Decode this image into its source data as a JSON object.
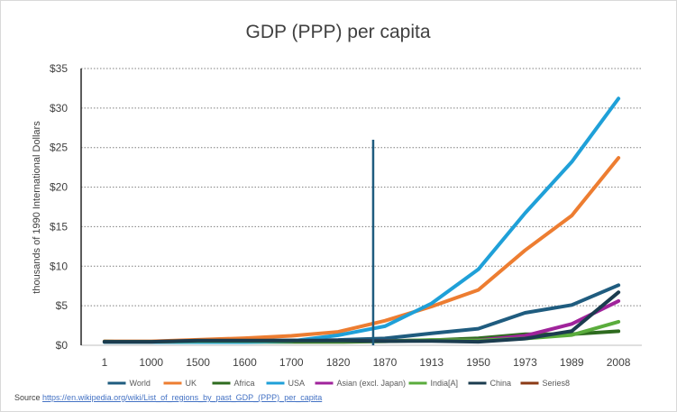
{
  "chart_data": {
    "type": "line",
    "title": "GDP (PPP) per capita",
    "ylabel": "thousands of 1990 International Dollars",
    "xlabel": "",
    "categories": [
      "1",
      "1000",
      "1500",
      "1600",
      "1700",
      "1820",
      "1870",
      "1913",
      "1950",
      "1973",
      "1989",
      "2008"
    ],
    "ylim": [
      0,
      35
    ],
    "yticks": [
      0,
      5,
      10,
      15,
      20,
      25,
      30,
      35
    ],
    "ytick_labels": [
      "$0",
      "$5",
      "$10",
      "$15",
      "$20",
      "$25",
      "$30",
      "$35"
    ],
    "grid": "horizontal dotted",
    "legend_position": "bottom",
    "series": [
      {
        "name": "World",
        "color": "#1f5c7f",
        "values": [
          0.47,
          0.45,
          0.57,
          0.6,
          0.62,
          0.67,
          0.87,
          1.5,
          2.1,
          4.1,
          5.1,
          7.6
        ]
      },
      {
        "name": "UK",
        "color": "#ed7d31",
        "values": [
          0.5,
          0.5,
          0.7,
          0.9,
          1.2,
          1.7,
          3.1,
          4.9,
          7.0,
          12.0,
          16.4,
          23.7
        ]
      },
      {
        "name": "Africa",
        "color": "#2e6b1f",
        "values": [
          0.47,
          0.43,
          0.41,
          0.42,
          0.42,
          0.42,
          0.5,
          0.64,
          0.89,
          1.4,
          1.4,
          1.78
        ]
      },
      {
        "name": "USA",
        "color": "#1fa0d8",
        "values": [
          0.4,
          0.4,
          0.4,
          0.4,
          0.53,
          1.26,
          2.4,
          5.3,
          9.6,
          16.7,
          23.2,
          31.2
        ]
      },
      {
        "name": "Asian (excl. Japan)",
        "color": "#a0239b",
        "values": [
          0.45,
          0.45,
          0.57,
          0.57,
          0.57,
          0.58,
          0.54,
          0.64,
          0.64,
          1.2,
          2.7,
          5.6
        ]
      },
      {
        "name": "India[A]",
        "color": "#5aac3c",
        "values": [
          0.45,
          0.45,
          0.55,
          0.55,
          0.55,
          0.53,
          0.53,
          0.67,
          0.62,
          0.85,
          1.3,
          2.98
        ]
      },
      {
        "name": "China",
        "color": "#1b3c4f",
        "values": [
          0.45,
          0.45,
          0.6,
          0.6,
          0.6,
          0.6,
          0.53,
          0.55,
          0.45,
          0.84,
          1.8,
          6.7
        ]
      },
      {
        "name": "Series8",
        "color": "#8b3a14",
        "values": [
          null,
          null,
          null,
          null,
          null,
          null,
          null,
          null,
          null,
          null,
          null,
          null
        ]
      }
    ],
    "annotation_line": {
      "color": "#1f5c7f",
      "x": 5.75,
      "y_from": 0,
      "y_to": 26
    }
  },
  "source": {
    "label": "Source",
    "url_text": "https://en.wikipedia.org/wiki/List_of_regions_by_past_GDP_(PPP)_per_capita"
  }
}
